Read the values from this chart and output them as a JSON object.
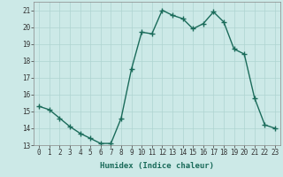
{
  "x": [
    0,
    1,
    2,
    3,
    4,
    5,
    6,
    7,
    8,
    9,
    10,
    11,
    12,
    13,
    14,
    15,
    16,
    17,
    18,
    19,
    20,
    21,
    22,
    23
  ],
  "y": [
    15.3,
    15.1,
    14.6,
    14.1,
    13.7,
    13.4,
    13.1,
    13.1,
    14.6,
    17.5,
    19.7,
    19.6,
    21.0,
    20.7,
    20.5,
    19.9,
    20.2,
    20.9,
    20.3,
    18.7,
    18.4,
    15.8,
    14.2,
    14.0
  ],
  "line_color": "#1a6b5a",
  "marker": "+",
  "marker_size": 4,
  "bg_color": "#cce9e7",
  "grid_color": "#afd4d1",
  "xlabel": "Humidex (Indice chaleur)",
  "xlim": [
    -0.5,
    23.5
  ],
  "ylim": [
    13,
    21.5
  ],
  "yticks": [
    13,
    14,
    15,
    16,
    17,
    18,
    19,
    20,
    21
  ],
  "xticks": [
    0,
    1,
    2,
    3,
    4,
    5,
    6,
    7,
    8,
    9,
    10,
    11,
    12,
    13,
    14,
    15,
    16,
    17,
    18,
    19,
    20,
    21,
    22,
    23
  ],
  "xlabel_fontsize": 6.5,
  "tick_fontsize": 5.5,
  "line_width": 1.0
}
